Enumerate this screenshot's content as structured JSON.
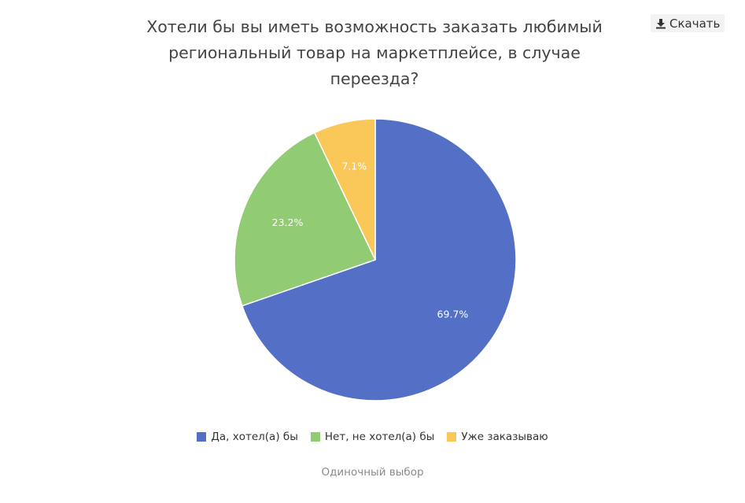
{
  "toolbar": {
    "download_label": "Скачать",
    "download_icon": "download-icon"
  },
  "chart_data": {
    "type": "pie",
    "title": "Хотели бы вы иметь возможность заказать любимый региональный товар на маркетплейсе, в случае переезда?",
    "categories": [
      "Да, хотел(а) бы",
      "Нет, не хотел(а) бы",
      "Уже заказываю"
    ],
    "values": [
      69.7,
      23.2,
      7.1
    ],
    "data_labels": [
      "69.7%",
      "23.2%",
      "7.1%"
    ],
    "colors": [
      "#5470c6",
      "#91cb74",
      "#fac858"
    ],
    "legend_position": "bottom",
    "start": "12 o'clock",
    "direction": "clockwise"
  },
  "footer": {
    "note": "Одиночный выбор"
  }
}
